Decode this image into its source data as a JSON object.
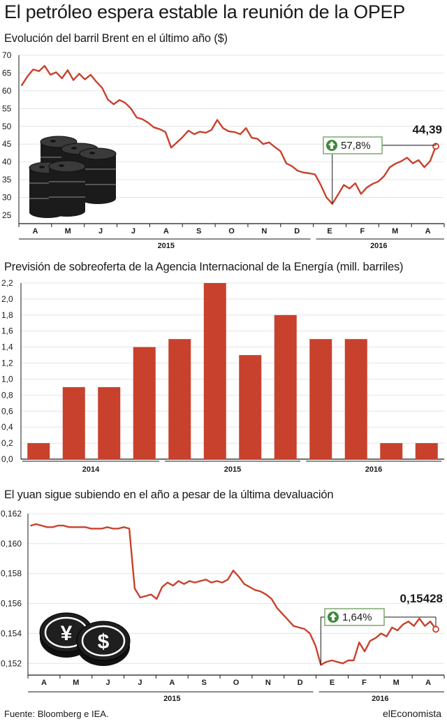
{
  "title": "El petróleo espera estable la reunión de la OPEP",
  "source": "Fuente: Bloomberg e IEA.",
  "brand": "elEconomista",
  "colors": {
    "series": "#c8412c",
    "text": "#1a1a1a",
    "grid": "#e4e4e4",
    "callout_border": "#7aa86e",
    "callout_icon": "#3f8a3a"
  },
  "chart_data": [
    {
      "type": "line",
      "title": "Evolución del barril Brent en el último año ($)",
      "ylim": [
        25,
        70
      ],
      "yticks": [
        "70",
        "65",
        "60",
        "55",
        "50",
        "45",
        "40",
        "35",
        "30",
        "25"
      ],
      "ytick_values": [
        70,
        65,
        60,
        55,
        50,
        45,
        40,
        35,
        30,
        25
      ],
      "grid": true,
      "months": [
        "A",
        "M",
        "J",
        "J",
        "A",
        "S",
        "O",
        "N",
        "D",
        "E",
        "F",
        "M",
        "A"
      ],
      "years": [
        "2015",
        "2016"
      ],
      "icon": "oil-barrels",
      "callout": {
        "label": "57,8%",
        "icon": "arrow-up-icon"
      },
      "last_label": "44,39",
      "series": [
        {
          "values": [
            61.5,
            64.0,
            66.0,
            65.5,
            67.0,
            64.5,
            65.2,
            63.5,
            65.8,
            63.0,
            64.8,
            63.2,
            64.5,
            62.5,
            60.8,
            57.5,
            56.2,
            57.4,
            56.6,
            55.0,
            52.5,
            52.0,
            51.0,
            49.7,
            49.2,
            48.4,
            44.0,
            45.5,
            47.0,
            48.8,
            47.8,
            48.5,
            48.2,
            49.0,
            51.8,
            49.5,
            48.6,
            48.4,
            47.8,
            49.5,
            46.8,
            46.5,
            45.0,
            45.5,
            44.2,
            43.0,
            39.6,
            38.8,
            37.5,
            37.0,
            36.8,
            36.5,
            33.5,
            30.0,
            28.2,
            30.8,
            33.5,
            32.5,
            34.0,
            31.0,
            32.8,
            33.8,
            34.5,
            36.0,
            38.5,
            39.5,
            40.2,
            41.2,
            39.6,
            40.5,
            38.5,
            40.2,
            44.39
          ]
        }
      ]
    },
    {
      "type": "bar",
      "title": "Previsión de sobreoferta de la Agencia Internacional de la Energía (mill. barriles)",
      "ylim": [
        0,
        2.2
      ],
      "yticks": [
        "2,2",
        "2,0",
        "1,8",
        "1,6",
        "1,4",
        "1,2",
        "1,0",
        "0,8",
        "0,6",
        "0,4",
        "0,2",
        "0,0"
      ],
      "ytick_values": [
        2.2,
        2.0,
        1.8,
        1.6,
        1.4,
        1.2,
        1.0,
        0.8,
        0.6,
        0.4,
        0.2,
        0.0
      ],
      "grid": true,
      "values": [
        0.2,
        0.9,
        0.9,
        1.4,
        1.5,
        2.2,
        1.3,
        1.8,
        1.5,
        1.5,
        0.2,
        0.2
      ],
      "years": [
        "2014",
        "2015",
        "2016"
      ]
    },
    {
      "type": "line",
      "title": "El yuan sigue subiendo en el año a pesar de la última devaluación",
      "ylim": [
        0.1515,
        0.162
      ],
      "yticks": [
        "0,162",
        "0,160",
        "0,158",
        "0,156",
        "0,154",
        "0,152"
      ],
      "ytick_values": [
        0.162,
        0.16,
        0.158,
        0.156,
        0.154,
        0.152
      ],
      "grid": true,
      "months": [
        "A",
        "M",
        "J",
        "J",
        "A",
        "S",
        "O",
        "N",
        "D",
        "E",
        "F",
        "M",
        "A"
      ],
      "years": [
        "2015",
        "2016"
      ],
      "icon": "currency-coins",
      "coin_symbols": [
        "¥",
        "$"
      ],
      "callout": {
        "label": "1,64%",
        "icon": "arrow-up-icon"
      },
      "last_label": "0,15428",
      "series": [
        {
          "values": [
            0.1612,
            0.1613,
            0.1612,
            0.1611,
            0.1611,
            0.1612,
            0.1612,
            0.1611,
            0.1611,
            0.1611,
            0.1611,
            0.161,
            0.161,
            0.161,
            0.1611,
            0.161,
            0.161,
            0.1611,
            0.161,
            0.157,
            0.1564,
            0.1565,
            0.1566,
            0.1563,
            0.1571,
            0.1574,
            0.1572,
            0.1575,
            0.1573,
            0.1575,
            0.1574,
            0.1575,
            0.1576,
            0.1574,
            0.1575,
            0.1574,
            0.1576,
            0.1582,
            0.1578,
            0.1573,
            0.1571,
            0.1569,
            0.1568,
            0.1566,
            0.1563,
            0.1557,
            0.1553,
            0.1549,
            0.1545,
            0.1544,
            0.1543,
            0.154,
            0.1532,
            0.1519,
            0.1521,
            0.1522,
            0.1521,
            0.152,
            0.1522,
            0.1522,
            0.1534,
            0.1528,
            0.1535,
            0.1537,
            0.154,
            0.1538,
            0.1544,
            0.1542,
            0.1546,
            0.1548,
            0.1545,
            0.155,
            0.1545,
            0.1548,
            0.15428
          ]
        }
      ]
    }
  ]
}
